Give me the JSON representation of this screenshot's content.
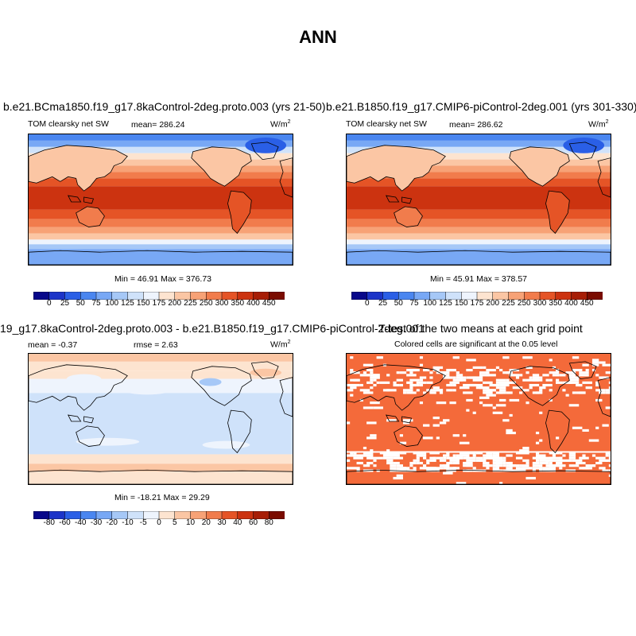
{
  "title": "ANN",
  "panels": [
    {
      "title": "b.e21.BCma1850.f19_g17.8kaControl-2deg.proto.003 (yrs 21-50)",
      "left_label": "TOM clearsky net SW",
      "center_label": "mean= 286.24",
      "units": "W/m",
      "units_sup": "2",
      "stats": "Min =  46.91 Max = 376.73",
      "colorbar_labels": [
        "0",
        "25",
        "50",
        "75",
        "100",
        "125",
        "150",
        "175",
        "200",
        "225",
        "250",
        "300",
        "350",
        "400",
        "450"
      ]
    },
    {
      "title": "b.e21.B1850.f19_g17.CMIP6-piControl-2deg.001 (yrs 301-330)",
      "left_label": "TOM clearsky net SW",
      "center_label": "mean= 286.62",
      "units": "W/m",
      "units_sup": "2",
      "stats": "Min =  45.91 Max = 378.57",
      "colorbar_labels": [
        "0",
        "25",
        "50",
        "75",
        "100",
        "125",
        "150",
        "175",
        "200",
        "225",
        "250",
        "300",
        "350",
        "400",
        "450"
      ]
    },
    {
      "title": "19_g17.8kaControl-2deg.proto.003 - b.e21.B1850.f19_g17.CMIP6-piControl-2deg.001",
      "left_label": "mean =  -0.37",
      "center_label": "rmse =   2.63",
      "units": "W/m",
      "units_sup": "2",
      "stats": "Min = -18.21 Max =  29.29",
      "colorbar_labels": [
        "-80",
        "-60",
        "-40",
        "-30",
        "-20",
        "-10",
        "-5",
        "0",
        "5",
        "10",
        "20",
        "30",
        "40",
        "60",
        "80"
      ]
    },
    {
      "title": "T-test of the two means at each grid point",
      "subtitle": "Colored cells are significant at the 0.05 level"
    }
  ],
  "colors": {
    "abs_scale": [
      "#08088a",
      "#1c34c8",
      "#2a5fe6",
      "#4a86f0",
      "#78a8f5",
      "#a6c8f7",
      "#cfe2fa",
      "#eef4fd",
      "#fde4d0",
      "#fbc6a4",
      "#f7a276",
      "#f17c4c",
      "#e55426",
      "#cc3310",
      "#a71e06",
      "#7a0c00"
    ],
    "diff_scale": [
      "#08088a",
      "#1c34c8",
      "#2a5fe6",
      "#4a86f0",
      "#78a8f5",
      "#a6c8f7",
      "#cfe2fa",
      "#eef4fd",
      "#fde4d0",
      "#fbc6a4",
      "#f7a276",
      "#f17c4c",
      "#e55426",
      "#cc3310",
      "#a71e06",
      "#7a0c00"
    ],
    "ttest": "#f46a3a"
  }
}
